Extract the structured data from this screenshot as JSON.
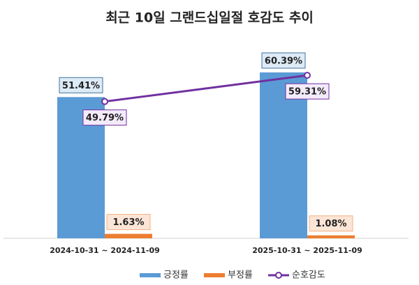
{
  "chart_data": {
    "type": "bar-line",
    "title": "최근 10일 그랜드십일절 호감도 추이",
    "categories": [
      "2024-10-31 ~ 2024-11-09",
      "2025-10-31 ~ 2025-11-09"
    ],
    "series": [
      {
        "name": "긍정률",
        "type": "bar",
        "color": "#5b9bd5",
        "values": [
          51.41,
          60.39
        ],
        "value_labels": [
          "51.41%",
          "60.39%"
        ]
      },
      {
        "name": "부정률",
        "type": "bar",
        "color": "#ed7d31",
        "values": [
          1.63,
          1.08
        ],
        "value_labels": [
          "1.63%",
          "1.08%"
        ]
      },
      {
        "name": "순호감도",
        "type": "line",
        "color": "#7030a0",
        "values": [
          49.79,
          59.31
        ],
        "value_labels": [
          "49.79%",
          "59.31%"
        ]
      }
    ],
    "ylim": [
      0,
      70
    ]
  }
}
